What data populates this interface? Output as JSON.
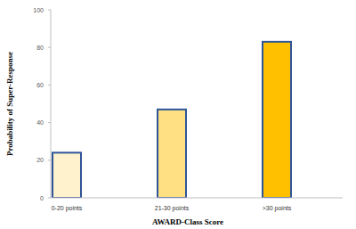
{
  "chart_data": {
    "type": "bar",
    "categories": [
      "0-20 points",
      "21-30 points",
      ">30 points"
    ],
    "values": [
      24,
      47,
      83
    ],
    "colors": [
      "#fff2cc",
      "#ffe083",
      "#ffc000"
    ],
    "x_label": "AWARD-Class Score",
    "y_label": "Probability of Super-Response",
    "ylim": [
      0,
      100
    ],
    "yticks": [
      0,
      20,
      40,
      60,
      80,
      100
    ],
    "grid": false
  }
}
